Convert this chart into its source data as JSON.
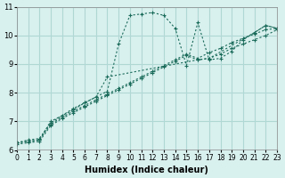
{
  "xlabel": "Humidex (Indice chaleur)",
  "ylabel": "",
  "bg_color": "#d8f0ee",
  "grid_color": "#b0d8d4",
  "line_color": "#1a6b5a",
  "xlim": [
    0,
    23
  ],
  "ylim": [
    6,
    11
  ],
  "xticks": [
    0,
    1,
    2,
    3,
    4,
    5,
    6,
    7,
    8,
    9,
    10,
    11,
    12,
    13,
    14,
    15,
    16,
    17,
    18,
    19,
    20,
    21,
    22,
    23
  ],
  "yticks": [
    6,
    7,
    8,
    9,
    10,
    11
  ],
  "series": [
    {
      "x": [
        0,
        1,
        2,
        3,
        4,
        5,
        6,
        7,
        8,
        9,
        10,
        11,
        12,
        13,
        14,
        15,
        16,
        17,
        18,
        19,
        20,
        21,
        22,
        23
      ],
      "y": [
        6.25,
        6.35,
        6.4,
        6.95,
        7.2,
        7.45,
        7.65,
        7.85,
        8.05,
        9.7,
        10.7,
        10.75,
        10.8,
        10.7,
        10.25,
        8.95,
        10.45,
        9.15,
        9.2,
        9.45,
        9.85,
        10.1,
        10.35,
        10.25
      ],
      "marker": "+"
    },
    {
      "x": [
        0,
        1,
        2,
        3,
        4,
        5,
        6,
        7,
        8,
        9,
        10,
        11,
        12,
        13,
        14,
        15,
        16,
        17,
        18,
        19,
        20,
        21,
        22,
        23
      ],
      "y": [
        6.25,
        6.3,
        6.35,
        6.9,
        7.15,
        7.35,
        7.55,
        7.75,
        7.95,
        8.15,
        8.35,
        8.55,
        8.75,
        8.95,
        9.15,
        9.35,
        9.2,
        9.4,
        9.55,
        9.75,
        9.9,
        10.05,
        10.2,
        10.25
      ],
      "marker": "+"
    },
    {
      "x": [
        0,
        1,
        2,
        3,
        4,
        5,
        6,
        7,
        8,
        9,
        10,
        11,
        12,
        13,
        14,
        15,
        16,
        17,
        18,
        19,
        20,
        21,
        22,
        23
      ],
      "y": [
        6.2,
        6.25,
        6.3,
        6.85,
        7.1,
        7.3,
        7.5,
        7.7,
        7.9,
        8.1,
        8.3,
        8.5,
        8.7,
        8.9,
        9.1,
        9.3,
        9.15,
        9.2,
        9.35,
        9.55,
        9.7,
        9.85,
        10.0,
        10.2
      ],
      "marker": "+"
    },
    {
      "x": [
        0,
        2,
        3,
        5,
        6,
        7,
        8,
        16,
        17,
        21,
        22,
        23
      ],
      "y": [
        6.25,
        6.35,
        7.0,
        7.4,
        7.65,
        7.85,
        8.55,
        9.15,
        9.2,
        10.1,
        10.35,
        10.25
      ],
      "marker": "+"
    }
  ]
}
